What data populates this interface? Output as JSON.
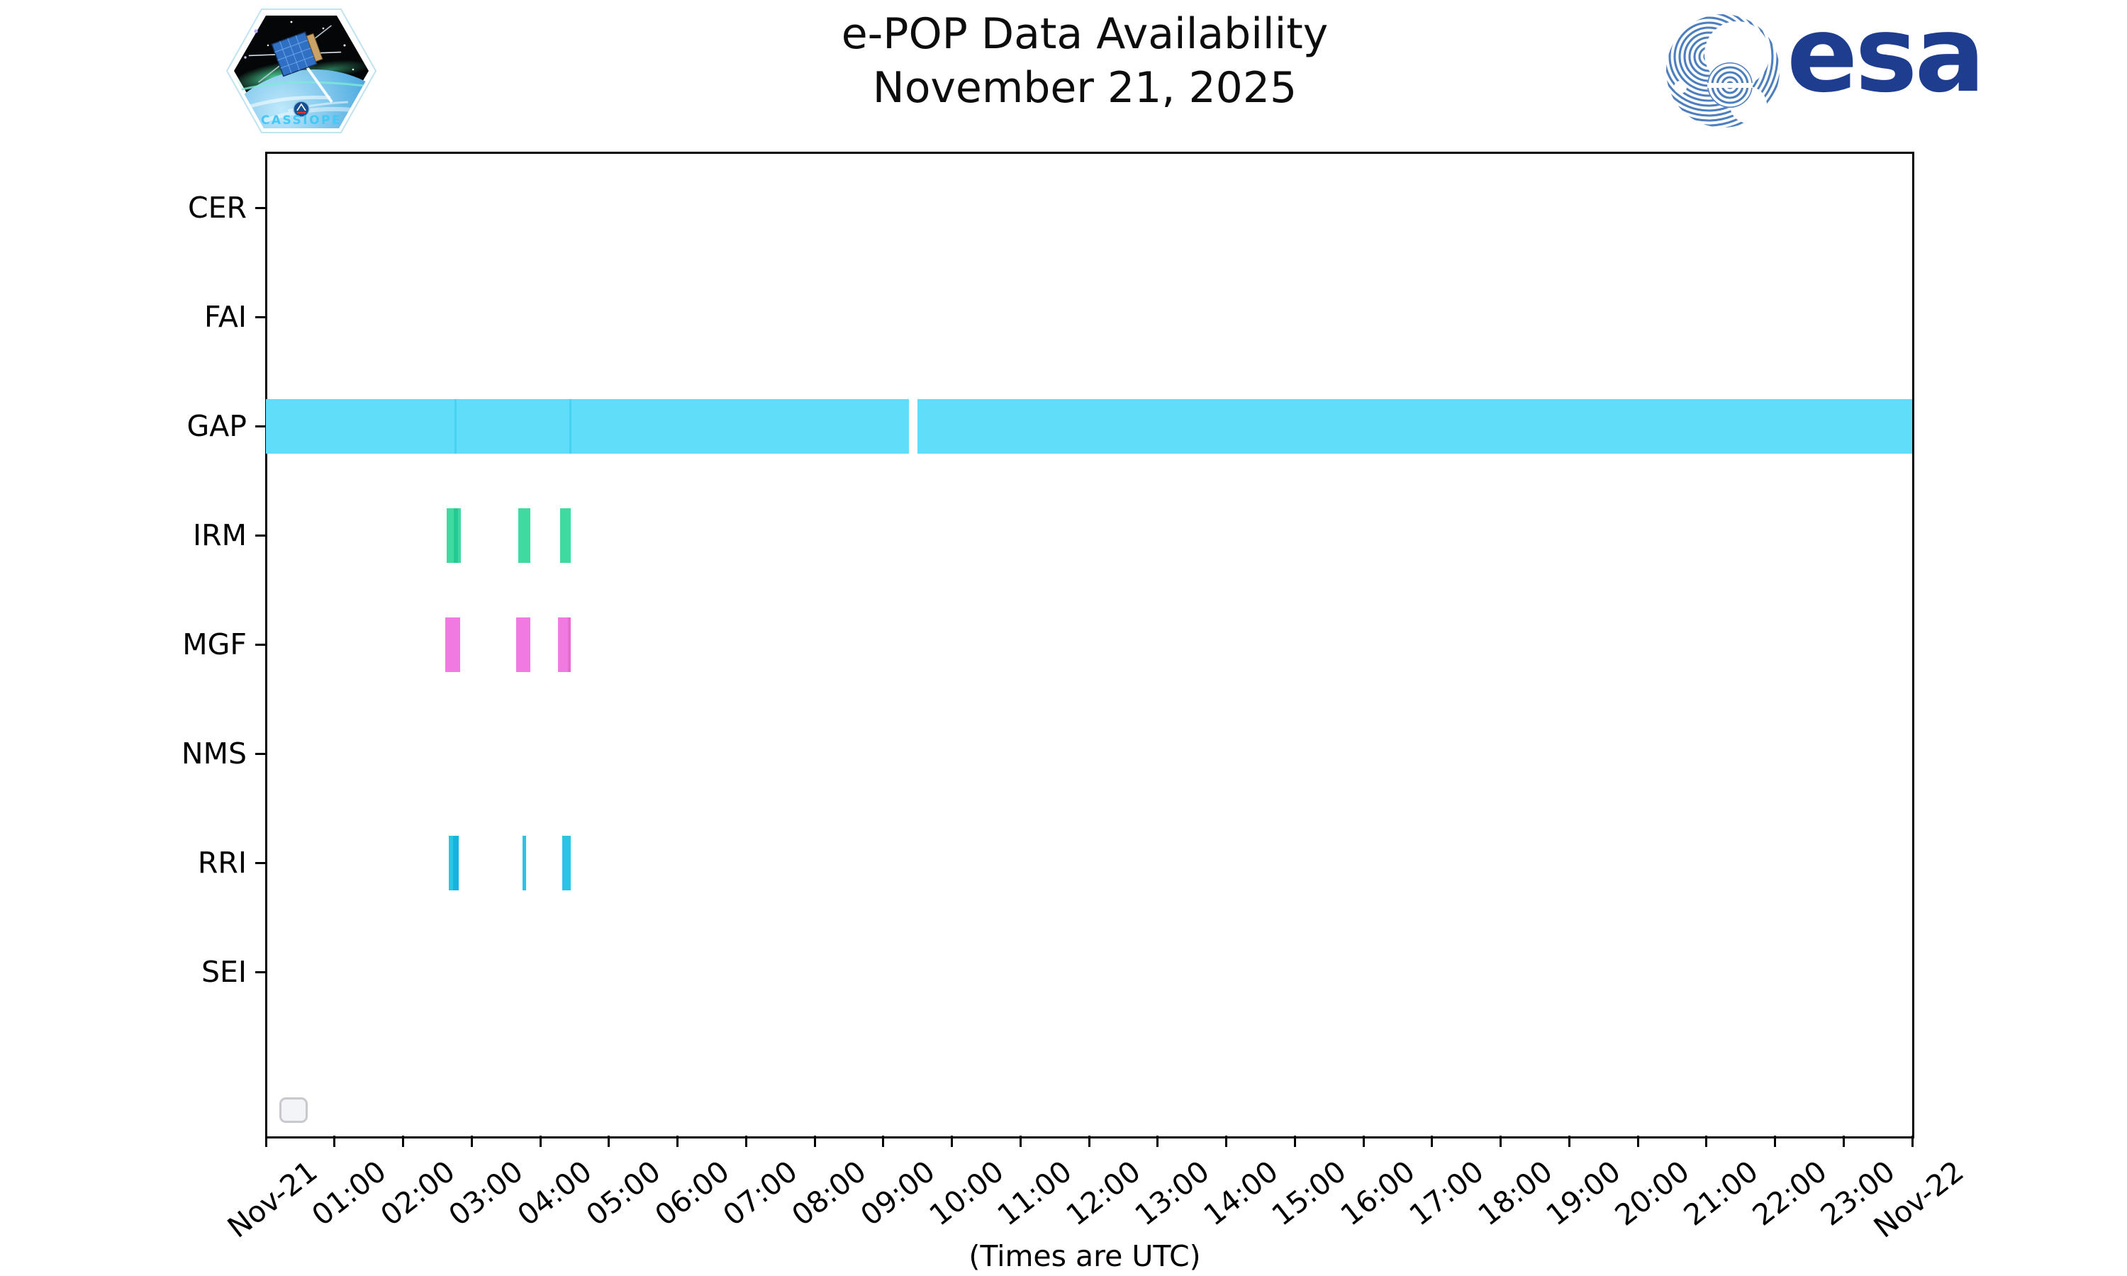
{
  "header": {
    "title_line1": "e-POP Data Availability",
    "title_line2": "November 21, 2025"
  },
  "branding": {
    "cassiope_label": "CASSIOPE",
    "esa_label": "esa"
  },
  "chart_data": {
    "type": "bar",
    "subtype": "timeline-availability",
    "title": "e-POP Data Availability November 21, 2025",
    "xlabel": "(Times are UTC)",
    "rows": [
      "CER",
      "FAI",
      "GAP",
      "IRM",
      "MGF",
      "NMS",
      "RRI",
      "SEI"
    ],
    "x_ticks": [
      "Nov-21",
      "01:00",
      "02:00",
      "03:00",
      "04:00",
      "05:00",
      "06:00",
      "07:00",
      "08:00",
      "09:00",
      "10:00",
      "11:00",
      "12:00",
      "13:00",
      "14:00",
      "15:00",
      "16:00",
      "17:00",
      "18:00",
      "19:00",
      "20:00",
      "21:00",
      "22:00",
      "23:00",
      "Nov-22"
    ],
    "x_range_hours": [
      0,
      24
    ],
    "grid": false,
    "legend_box": "empty",
    "bars": [
      {
        "row": "GAP",
        "start": 0.0,
        "end": 9.37,
        "color": "gap"
      },
      {
        "row": "GAP",
        "start": 9.5,
        "end": 24.0,
        "color": "gap"
      },
      {
        "row": "IRM",
        "start": 2.64,
        "end": 2.84,
        "color": "irm"
      },
      {
        "row": "IRM",
        "start": 3.68,
        "end": 3.86,
        "color": "irm"
      },
      {
        "row": "IRM",
        "start": 4.29,
        "end": 4.44,
        "color": "irm"
      },
      {
        "row": "MGF",
        "start": 2.62,
        "end": 2.83,
        "color": "mgf"
      },
      {
        "row": "MGF",
        "start": 3.65,
        "end": 3.86,
        "color": "mgf"
      },
      {
        "row": "MGF",
        "start": 4.26,
        "end": 4.44,
        "color": "mgf"
      },
      {
        "row": "RRI",
        "start": 2.67,
        "end": 2.81,
        "color": "rri"
      },
      {
        "row": "RRI",
        "start": 3.74,
        "end": 3.79,
        "color": "rri"
      },
      {
        "row": "RRI",
        "start": 4.32,
        "end": 4.44,
        "color": "rri"
      }
    ],
    "overlap_marks": [
      {
        "row": "GAP",
        "start": 2.75,
        "end": 2.78,
        "color": "gap_seam"
      },
      {
        "row": "GAP",
        "start": 4.42,
        "end": 4.45,
        "color": "gap_seam"
      },
      {
        "row": "IRM",
        "start": 2.74,
        "end": 2.8,
        "color": "irm_dark"
      },
      {
        "row": "MGF",
        "start": 4.4,
        "end": 4.44,
        "color": "mgf_dark"
      },
      {
        "row": "RRI",
        "start": 2.73,
        "end": 2.81,
        "color": "rri_dark"
      }
    ],
    "colors": {
      "gap": "#60ddf8",
      "gap_seam": "#47d2f2",
      "irm": "#3eda9f",
      "irm_dark": "#25c993",
      "mgf": "#f07ae2",
      "mgf_dark": "#e66ad4",
      "rri": "#2dc3e7",
      "rri_dark": "#15b4dc"
    }
  }
}
